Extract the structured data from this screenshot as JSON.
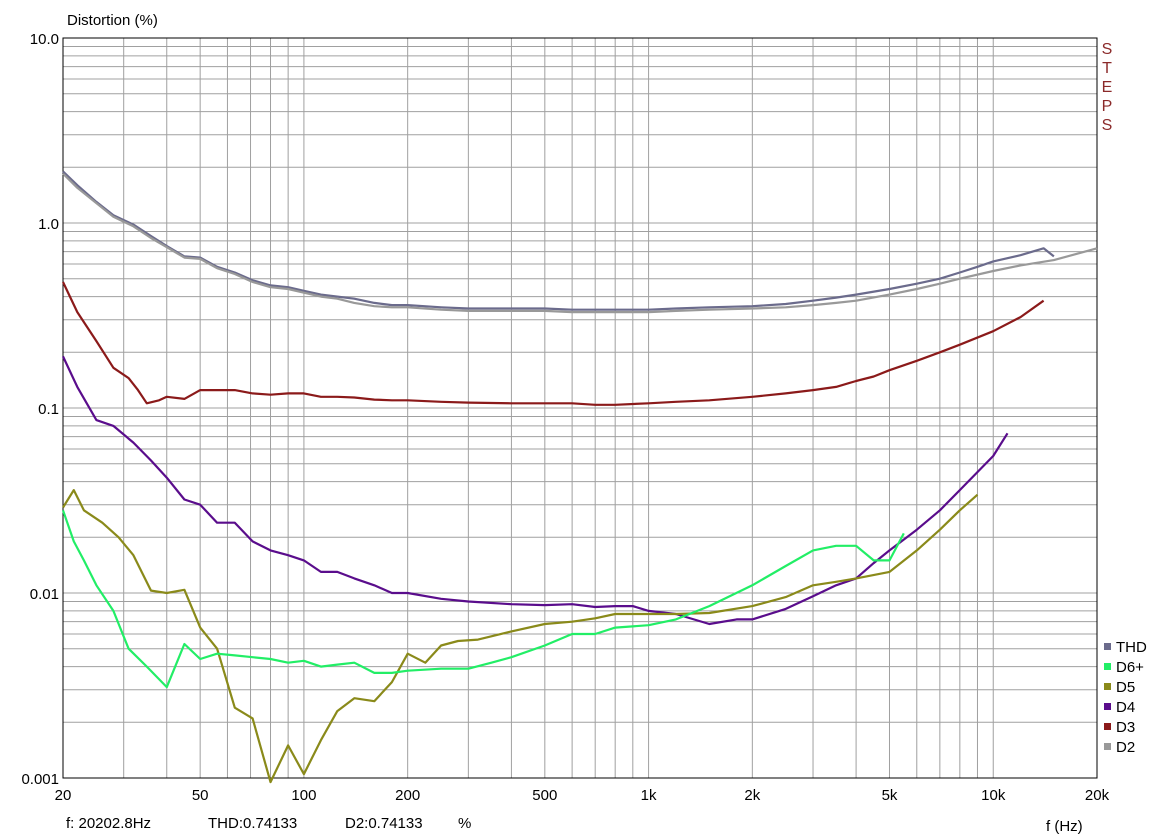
{
  "status": {
    "freq": "f: 20202.8Hz",
    "thd": "THD:0.74133",
    "d2": "D2:0.74133",
    "unit": "%"
  },
  "side_label": "STEPS",
  "chart_data": {
    "type": "line",
    "title": "",
    "ylabel": "Distortion (%)",
    "xlabel": "f (Hz)",
    "x_scale": "log",
    "y_scale": "log",
    "xlim": [
      20,
      20000
    ],
    "ylim": [
      0.001,
      10
    ],
    "grid": true,
    "legend_position": "bottom-right",
    "x_ticks": [
      {
        "v": 20,
        "label": "20"
      },
      {
        "v": 50,
        "label": "50"
      },
      {
        "v": 100,
        "label": "100"
      },
      {
        "v": 200,
        "label": "200"
      },
      {
        "v": 500,
        "label": "500"
      },
      {
        "v": 1000,
        "label": "1k"
      },
      {
        "v": 2000,
        "label": "2k"
      },
      {
        "v": 5000,
        "label": "5k"
      },
      {
        "v": 10000,
        "label": "10k"
      },
      {
        "v": 20000,
        "label": "20k"
      }
    ],
    "y_ticks": [
      {
        "v": 10,
        "label": "10.0"
      },
      {
        "v": 1,
        "label": "1.0"
      },
      {
        "v": 0.1,
        "label": "0.1"
      },
      {
        "v": 0.01,
        "label": "0.01"
      },
      {
        "v": 0.001,
        "label": "0.001"
      }
    ],
    "series": [
      {
        "name": "THD",
        "color": "#6b6b8c",
        "x": [
          20,
          22,
          25,
          28,
          32,
          36,
          40,
          45,
          50,
          56,
          63,
          71,
          80,
          90,
          100,
          112,
          125,
          140,
          160,
          180,
          200,
          250,
          300,
          400,
          500,
          600,
          700,
          800,
          1000,
          1200,
          1500,
          2000,
          2500,
          3000,
          3500,
          4000,
          5000,
          6000,
          7000,
          8000,
          9000,
          10000,
          12000,
          14000,
          15000
        ],
        "y": [
          1.9,
          1.6,
          1.3,
          1.1,
          0.98,
          0.85,
          0.75,
          0.66,
          0.65,
          0.58,
          0.54,
          0.49,
          0.46,
          0.45,
          0.43,
          0.41,
          0.4,
          0.39,
          0.37,
          0.36,
          0.36,
          0.35,
          0.345,
          0.345,
          0.345,
          0.34,
          0.34,
          0.34,
          0.34,
          0.345,
          0.35,
          0.355,
          0.365,
          0.38,
          0.395,
          0.41,
          0.44,
          0.47,
          0.5,
          0.54,
          0.58,
          0.62,
          0.67,
          0.73,
          0.66
        ]
      },
      {
        "name": "D2",
        "color": "#999999",
        "x": [
          20,
          22,
          25,
          28,
          32,
          36,
          40,
          45,
          50,
          56,
          63,
          71,
          80,
          90,
          100,
          112,
          125,
          140,
          160,
          180,
          200,
          250,
          300,
          400,
          500,
          600,
          700,
          800,
          1000,
          1200,
          1500,
          2000,
          2500,
          3000,
          3500,
          4000,
          5000,
          6000,
          7000,
          8000,
          10000,
          12000,
          15000,
          20000
        ],
        "y": [
          1.85,
          1.55,
          1.28,
          1.08,
          0.96,
          0.83,
          0.74,
          0.65,
          0.64,
          0.57,
          0.53,
          0.48,
          0.45,
          0.44,
          0.42,
          0.4,
          0.39,
          0.37,
          0.355,
          0.35,
          0.35,
          0.34,
          0.335,
          0.335,
          0.335,
          0.33,
          0.33,
          0.33,
          0.33,
          0.335,
          0.34,
          0.345,
          0.35,
          0.36,
          0.37,
          0.38,
          0.41,
          0.44,
          0.47,
          0.5,
          0.55,
          0.59,
          0.63,
          0.73
        ]
      },
      {
        "name": "D3",
        "color": "#8b1a1a",
        "x": [
          20,
          22,
          25,
          28,
          31,
          33,
          35,
          38,
          40,
          45,
          50,
          56,
          63,
          71,
          80,
          90,
          100,
          112,
          125,
          140,
          160,
          180,
          200,
          250,
          300,
          400,
          500,
          600,
          700,
          800,
          1000,
          1200,
          1500,
          2000,
          2500,
          3000,
          3500,
          4000,
          4500,
          5000,
          6000,
          7000,
          8000,
          10000,
          12000,
          14000
        ],
        "y": [
          0.48,
          0.33,
          0.23,
          0.165,
          0.145,
          0.125,
          0.106,
          0.11,
          0.115,
          0.112,
          0.125,
          0.125,
          0.125,
          0.12,
          0.118,
          0.12,
          0.12,
          0.115,
          0.115,
          0.114,
          0.111,
          0.11,
          0.11,
          0.108,
          0.107,
          0.106,
          0.106,
          0.106,
          0.104,
          0.104,
          0.106,
          0.108,
          0.11,
          0.115,
          0.12,
          0.125,
          0.13,
          0.14,
          0.148,
          0.16,
          0.18,
          0.2,
          0.22,
          0.26,
          0.31,
          0.38
        ]
      },
      {
        "name": "D4",
        "color": "#5a0d8c",
        "x": [
          20,
          22,
          25,
          28,
          32,
          36,
          40,
          45,
          50,
          56,
          63,
          71,
          80,
          90,
          100,
          112,
          125,
          140,
          160,
          180,
          200,
          250,
          300,
          400,
          500,
          600,
          700,
          800,
          900,
          1000,
          1200,
          1500,
          1800,
          2000,
          2500,
          3000,
          3500,
          4000,
          4500,
          5000,
          6000,
          7000,
          8000,
          10000,
          11000
        ],
        "y": [
          0.19,
          0.13,
          0.086,
          0.08,
          0.065,
          0.052,
          0.042,
          0.032,
          0.03,
          0.024,
          0.024,
          0.019,
          0.017,
          0.016,
          0.015,
          0.013,
          0.013,
          0.012,
          0.011,
          0.01,
          0.01,
          0.0093,
          0.009,
          0.0087,
          0.0086,
          0.0087,
          0.0084,
          0.0085,
          0.0085,
          0.008,
          0.0077,
          0.0068,
          0.0072,
          0.0072,
          0.0082,
          0.0096,
          0.011,
          0.012,
          0.0145,
          0.017,
          0.022,
          0.028,
          0.036,
          0.055,
          0.073
        ]
      },
      {
        "name": "D5",
        "color": "#8a8a1a",
        "x": [
          20,
          21.5,
          23,
          26,
          29,
          32,
          36,
          40,
          45,
          50,
          56,
          63,
          71,
          80,
          90,
          100,
          112,
          125,
          140,
          160,
          180,
          200,
          225,
          250,
          280,
          320,
          400,
          500,
          600,
          700,
          800,
          1000,
          1200,
          1500,
          2000,
          2500,
          3000,
          3500,
          4000,
          5000,
          6000,
          7000,
          8000,
          9000
        ],
        "y": [
          0.029,
          0.036,
          0.028,
          0.024,
          0.02,
          0.016,
          0.0103,
          0.01,
          0.0104,
          0.0065,
          0.005,
          0.0024,
          0.0021,
          0.00095,
          0.0015,
          0.00105,
          0.0016,
          0.0023,
          0.0027,
          0.0026,
          0.0033,
          0.0047,
          0.0042,
          0.0052,
          0.0055,
          0.0056,
          0.0062,
          0.0068,
          0.007,
          0.0073,
          0.0077,
          0.0077,
          0.0077,
          0.0078,
          0.0085,
          0.0095,
          0.011,
          0.0115,
          0.012,
          0.013,
          0.017,
          0.022,
          0.028,
          0.034
        ]
      },
      {
        "name": "D6+",
        "color": "#22ee66",
        "x": [
          20,
          21.5,
          23,
          25,
          28,
          31,
          35,
          40,
          45,
          50,
          56,
          63,
          71,
          80,
          90,
          100,
          112,
          125,
          140,
          160,
          180,
          200,
          250,
          300,
          350,
          400,
          500,
          600,
          700,
          800,
          1000,
          1200,
          1500,
          2000,
          2500,
          3000,
          3500,
          4000,
          4500,
          5000,
          5500
        ],
        "y": [
          0.028,
          0.019,
          0.015,
          0.011,
          0.008,
          0.005,
          0.004,
          0.0031,
          0.0053,
          0.0044,
          0.0047,
          0.0046,
          0.0045,
          0.0044,
          0.0042,
          0.0043,
          0.004,
          0.0041,
          0.0042,
          0.0037,
          0.0037,
          0.0038,
          0.0039,
          0.0039,
          0.0042,
          0.0045,
          0.0052,
          0.006,
          0.006,
          0.0065,
          0.0067,
          0.0072,
          0.0085,
          0.011,
          0.014,
          0.017,
          0.018,
          0.018,
          0.015,
          0.015,
          0.021
        ]
      }
    ]
  }
}
